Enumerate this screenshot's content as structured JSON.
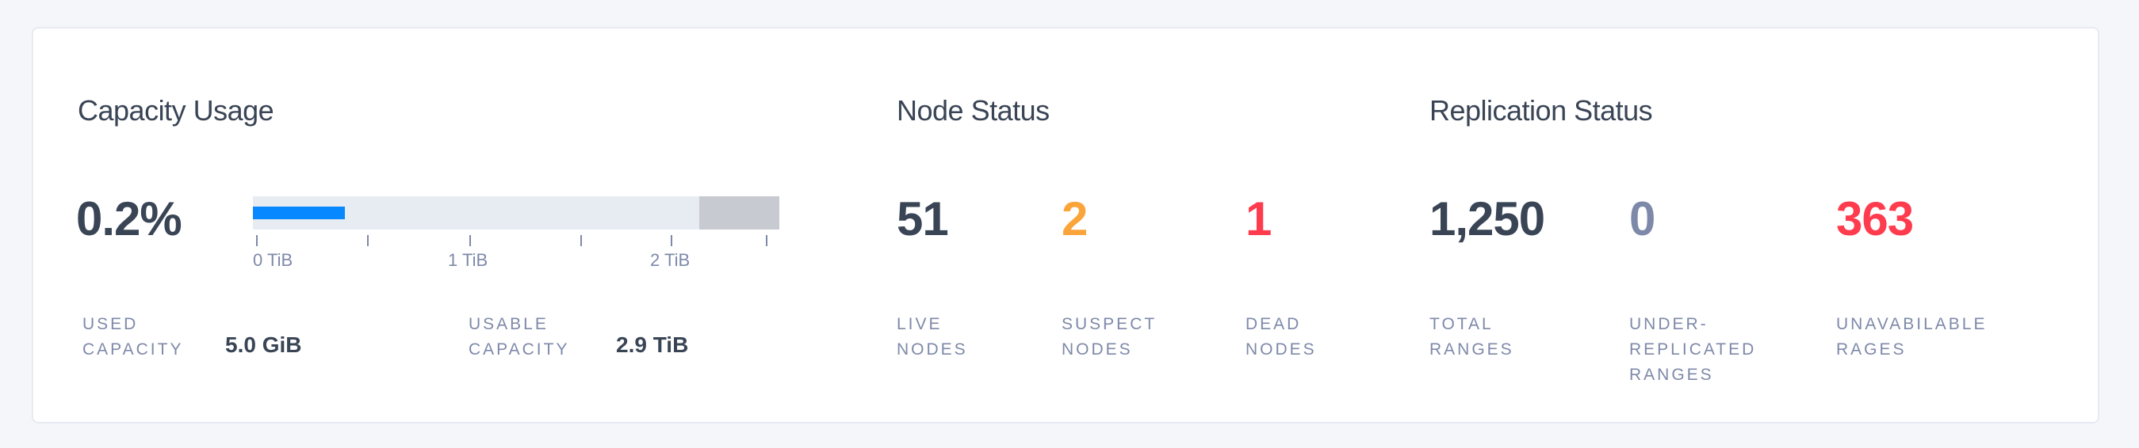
{
  "capacity": {
    "title": "Capacity Usage",
    "percent": "0.2%",
    "axis_labels": [
      "0 TiB",
      "1 TiB",
      "2 TiB"
    ],
    "used_label_line1": "USED",
    "used_label_line2": "CAPACITY",
    "used_value": "5.0 GiB",
    "usable_label_line1": "USABLE",
    "usable_label_line2": "CAPACITY",
    "usable_value": "2.9 TiB",
    "colors": {
      "used": "#0788ff",
      "track": "#e7ecf3",
      "reserved": "#c8cad2"
    }
  },
  "node_status": {
    "title": "Node Status",
    "items": [
      {
        "value": "51",
        "label_line1": "LIVE",
        "label_line2": "NODES",
        "color": "#394455"
      },
      {
        "value": "2",
        "label_line1": "SUSPECT",
        "label_line2": "NODES",
        "color": "#fba43a"
      },
      {
        "value": "1",
        "label_line1": "DEAD",
        "label_line2": "NODES",
        "color": "#ff3b4e"
      }
    ]
  },
  "replication_status": {
    "title": "Replication Status",
    "items": [
      {
        "value": "1,250",
        "label_line1": "TOTAL",
        "label_line2": "RANGES",
        "color": "#394455"
      },
      {
        "value": "0",
        "label_line1": "UNDER-",
        "label_line2": "REPLICATED",
        "label_line3": "RANGES",
        "color": "#7e89a9"
      },
      {
        "value": "363",
        "label_line1": "UNAVABILABLE",
        "label_line2": "RAGES",
        "color": "#ff3b4e"
      }
    ]
  }
}
